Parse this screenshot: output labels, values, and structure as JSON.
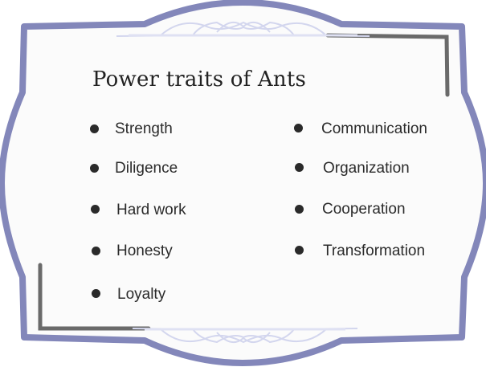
{
  "card": {
    "title": "Power traits of Ants",
    "frame_color": "#8387ba",
    "ornament_color": "#d9dcf0",
    "shadow_color": "#6a6a6a",
    "background_color": "#fbfbfb"
  },
  "traits": {
    "left": [
      "Strength",
      "Diligence",
      "Hard work",
      "Honesty",
      "Loyalty"
    ],
    "right": [
      "Communication",
      "Organization",
      "Cooperation",
      "Transformation"
    ]
  }
}
